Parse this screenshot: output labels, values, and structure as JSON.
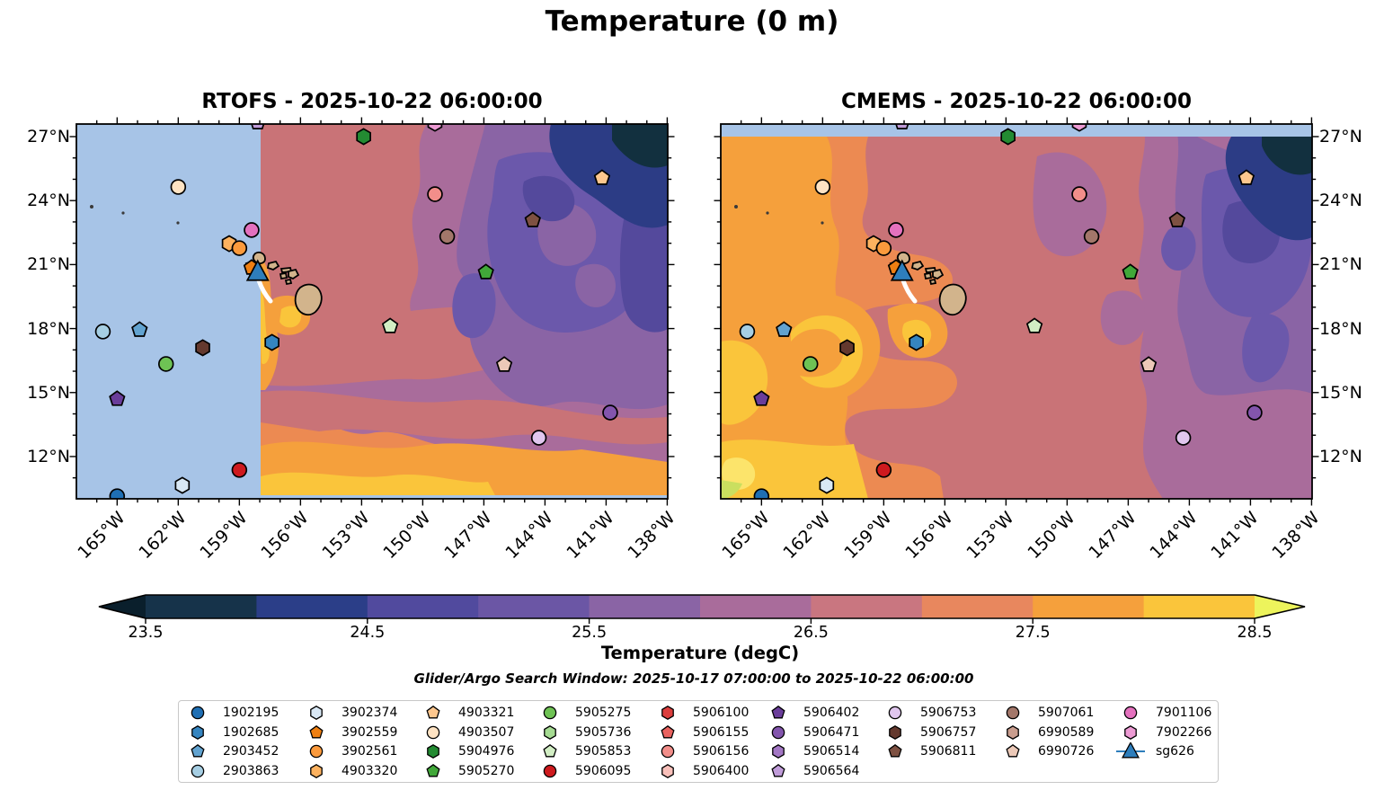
{
  "title": "Temperature (0 m)",
  "subtitle": "Glider/Argo Search Window: 2025-10-17 07:00:00 to 2025-10-22 06:00:00",
  "panels": [
    {
      "name": "RTOFS",
      "title": "RTOFS - 2025-10-22 06:00:00"
    },
    {
      "name": "CMEMS",
      "title": "CMEMS - 2025-10-22 06:00:00"
    }
  ],
  "axis": {
    "lon_tick_labels": [
      "165°W",
      "162°W",
      "159°W",
      "156°W",
      "153°W",
      "150°W",
      "147°W",
      "144°W",
      "141°W",
      "138°W"
    ],
    "lon_tick_values": [
      165,
      162,
      159,
      156,
      153,
      150,
      147,
      144,
      141,
      138
    ],
    "lat_tick_labels": [
      "27°N",
      "24°N",
      "21°N",
      "18°N",
      "15°N",
      "12°N"
    ],
    "lat_tick_values": [
      27,
      24,
      21,
      18,
      15,
      12
    ]
  },
  "colorbar": {
    "label": "Temperature (degC)",
    "tick_labels": [
      "23.5",
      "24.5",
      "25.5",
      "26.5",
      "27.5",
      "28.5"
    ],
    "tick_values": [
      23.5,
      24.5,
      25.5,
      26.5,
      27.5,
      28.5
    ],
    "range": [
      23.5,
      28.5
    ],
    "band_colors": [
      "#16334a",
      "#2b3e88",
      "#514a9e",
      "#6b56a5",
      "#8a64a5",
      "#a96c9b",
      "#c97680",
      "#e8875e",
      "#f5a03c",
      "#fac53b"
    ],
    "under_color": "#0a1f2c",
    "over_color": "#edf45c"
  },
  "legend": {
    "columns": [
      [
        "1902195",
        "1902685",
        "2903452",
        "2903863"
      ],
      [
        "3902374",
        "3902559",
        "3902561",
        "4903320"
      ],
      [
        "4903321",
        "4903507",
        "5904976",
        "5905270"
      ],
      [
        "5905275",
        "5905736",
        "5905853",
        "5906095"
      ],
      [
        "5906100",
        "5906155",
        "5906156",
        "5906400"
      ],
      [
        "5906402",
        "5906471",
        "5906514",
        "5906564"
      ],
      [
        "5906753",
        "5906757",
        "5906811"
      ],
      [
        "5907061",
        "6990589",
        "6990726"
      ],
      [
        "7901106",
        "7902266",
        "sg626"
      ]
    ],
    "markers": {
      "1902195": {
        "shape": "circle",
        "color": "#1f6fb4"
      },
      "1902685": {
        "shape": "hexagon",
        "color": "#3585c0"
      },
      "2903452": {
        "shape": "pentagon",
        "color": "#62a3d0"
      },
      "2903863": {
        "shape": "circle",
        "color": "#a6cee3"
      },
      "3902374": {
        "shape": "hexagon",
        "color": "#d9e8f5"
      },
      "3902559": {
        "shape": "pentagon",
        "color": "#ee7f12"
      },
      "3902561": {
        "shape": "circle",
        "color": "#fb9a3c"
      },
      "4903320": {
        "shape": "hexagon",
        "color": "#fdb25f"
      },
      "4903321": {
        "shape": "pentagon",
        "color": "#fdc78e"
      },
      "4903507": {
        "shape": "circle",
        "color": "#fee3c3"
      },
      "5904976": {
        "shape": "hexagon",
        "color": "#238b32"
      },
      "5905270": {
        "shape": "pentagon",
        "color": "#41a839"
      },
      "5905275": {
        "shape": "circle",
        "color": "#6ec254"
      },
      "5905736": {
        "shape": "hexagon",
        "color": "#a5db92"
      },
      "5905853": {
        "shape": "pentagon",
        "color": "#d2eec4"
      },
      "5906095": {
        "shape": "circle",
        "color": "#ce1a1e"
      },
      "5906100": {
        "shape": "hexagon",
        "color": "#dc3e3d"
      },
      "5906155": {
        "shape": "pentagon",
        "color": "#e9625f"
      },
      "5906156": {
        "shape": "circle",
        "color": "#f28e8a"
      },
      "5906400": {
        "shape": "hexagon",
        "color": "#f9c0ba"
      },
      "5906402": {
        "shape": "pentagon",
        "color": "#6a3d9a"
      },
      "5906471": {
        "shape": "circle",
        "color": "#8355ad"
      },
      "5906514": {
        "shape": "hexagon",
        "color": "#a377c4"
      },
      "5906564": {
        "shape": "pentagon",
        "color": "#c09cd9"
      },
      "5906753": {
        "shape": "circle",
        "color": "#e0c6ee"
      },
      "5906757": {
        "shape": "hexagon",
        "color": "#64392e"
      },
      "5906811": {
        "shape": "pentagon",
        "color": "#7e5142"
      },
      "5907061": {
        "shape": "circle",
        "color": "#a3776a"
      },
      "6990589": {
        "shape": "hexagon",
        "color": "#c99d8e"
      },
      "6990726": {
        "shape": "pentagon",
        "color": "#ecc9b8"
      },
      "7901106": {
        "shape": "circle",
        "color": "#e471be"
      },
      "7902266": {
        "shape": "hexagon",
        "color": "#ed9bd4"
      },
      "sg626": {
        "shape": "triangle",
        "color": "#2e7ebc"
      }
    }
  },
  "chart_data": {
    "type": "heatmap",
    "title": "Temperature (0 m)",
    "units": "degC",
    "colorbar_range": [
      23.5,
      28.5
    ],
    "lon_range_w": [
      167.0,
      138.0
    ],
    "lat_range_n": [
      10.1,
      27.6
    ],
    "panels": [
      "RTOFS - 2025-10-22 06:00:00",
      "CMEMS - 2025-10-22 06:00:00"
    ],
    "markers": [
      {
        "id": "5904976",
        "lon_w": 152.9,
        "lat_n": 27.0
      },
      {
        "id": "4903507",
        "lon_w": 162.0,
        "lat_n": 24.64
      },
      {
        "id": "4903321",
        "lon_w": 141.2,
        "lat_n": 25.06
      },
      {
        "id": "5906156",
        "lon_w": 149.4,
        "lat_n": 24.3
      },
      {
        "id": "7901106",
        "lon_w": 158.4,
        "lat_n": 22.62
      },
      {
        "id": "5906811",
        "lon_w": 144.6,
        "lat_n": 23.08
      },
      {
        "id": "5907061",
        "lon_w": 148.8,
        "lat_n": 22.32
      },
      {
        "id": "4903320",
        "lon_w": 159.5,
        "lat_n": 21.98
      },
      {
        "id": "3902561",
        "lon_w": 159.0,
        "lat_n": 21.77
      },
      {
        "id": "3902559",
        "lon_w": 158.4,
        "lat_n": 20.85
      },
      {
        "id": "5905270",
        "lon_w": 146.9,
        "lat_n": 20.64
      },
      {
        "id": "5905853",
        "lon_w": 151.6,
        "lat_n": 18.11
      },
      {
        "id": "2903863",
        "lon_w": 165.7,
        "lat_n": 17.86
      },
      {
        "id": "2903452",
        "lon_w": 163.9,
        "lat_n": 17.94
      },
      {
        "id": "1902685",
        "lon_w": 157.4,
        "lat_n": 17.35
      },
      {
        "id": "5906757",
        "lon_w": 160.8,
        "lat_n": 17.1
      },
      {
        "id": "5905275",
        "lon_w": 162.6,
        "lat_n": 16.34
      },
      {
        "id": "6990726",
        "lon_w": 146.0,
        "lat_n": 16.3
      },
      {
        "id": "3902374",
        "lon_w": 161.8,
        "lat_n": 10.65
      },
      {
        "id": "5906402",
        "lon_w": 165.0,
        "lat_n": 14.7
      },
      {
        "id": "5906095",
        "lon_w": 159.0,
        "lat_n": 11.37
      },
      {
        "id": "5906471",
        "lon_w": 140.8,
        "lat_n": 14.06
      },
      {
        "id": "5906753",
        "lon_w": 144.3,
        "lat_n": 12.88
      },
      {
        "id": "1902195",
        "lon_w": 165.0,
        "lat_n": 10.14
      },
      {
        "id": "5906564",
        "lon_w": 158.1,
        "lat_n": 27.67
      },
      {
        "id": "7902266",
        "lon_w": 149.4,
        "lat_n": 27.63
      },
      {
        "id": "sg626",
        "lon_w": 158.1,
        "lat_n": 20.64
      }
    ],
    "glider_track": {
      "id": "sg626",
      "points_lon_w": [
        158.05,
        157.9,
        157.6
      ],
      "points_lat_n": [
        20.25,
        20.0,
        19.7
      ]
    }
  }
}
